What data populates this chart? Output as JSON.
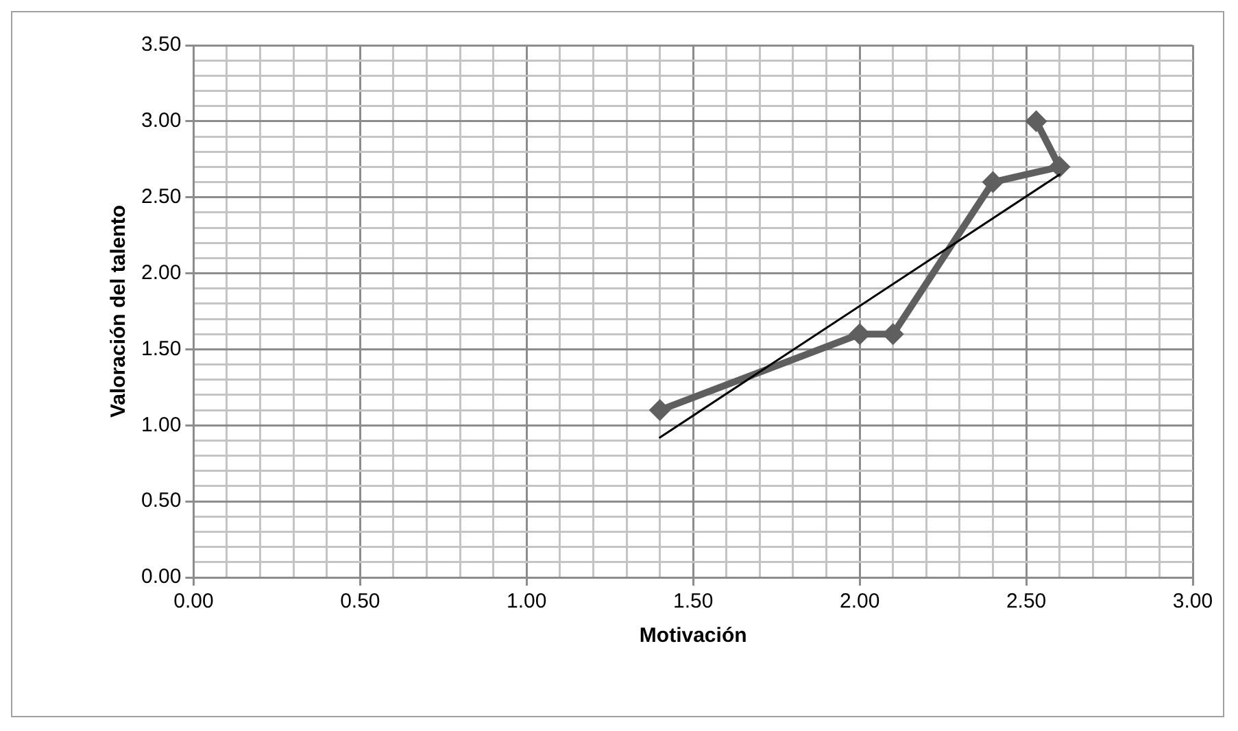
{
  "chart_data": {
    "type": "line",
    "xlabel": "Motivación",
    "ylabel": "Valoración del talento",
    "xlim": [
      0,
      3
    ],
    "ylim": [
      0,
      3.5
    ],
    "xticks": [
      {
        "value": 0,
        "label": "0.00"
      },
      {
        "value": 0.1,
        "label": null
      },
      {
        "value": 0.2,
        "label": null
      },
      {
        "value": 0.3,
        "label": null
      },
      {
        "value": 0.4,
        "label": null
      },
      {
        "value": 0.5,
        "label": "0.50"
      },
      {
        "value": 0.6,
        "label": null
      },
      {
        "value": 0.7,
        "label": null
      },
      {
        "value": 0.8,
        "label": null
      },
      {
        "value": 0.9,
        "label": null
      },
      {
        "value": 1,
        "label": "1.00"
      },
      {
        "value": 1.1,
        "label": null
      },
      {
        "value": 1.2,
        "label": null
      },
      {
        "value": 1.3,
        "label": null
      },
      {
        "value": 1.4,
        "label": null
      },
      {
        "value": 1.5,
        "label": "1.50"
      },
      {
        "value": 1.6,
        "label": null
      },
      {
        "value": 1.7,
        "label": null
      },
      {
        "value": 1.8,
        "label": null
      },
      {
        "value": 1.9,
        "label": null
      },
      {
        "value": 2,
        "label": "2.00"
      },
      {
        "value": 2.1,
        "label": null
      },
      {
        "value": 2.2,
        "label": null
      },
      {
        "value": 2.3,
        "label": null
      },
      {
        "value": 2.4,
        "label": null
      },
      {
        "value": 2.5,
        "label": "2.50"
      },
      {
        "value": 2.6,
        "label": null
      },
      {
        "value": 2.7,
        "label": null
      },
      {
        "value": 2.8,
        "label": null
      },
      {
        "value": 2.9,
        "label": null
      },
      {
        "value": 3,
        "label": "3.00"
      }
    ],
    "yticks": [
      {
        "value": 0,
        "label": "0.00"
      },
      {
        "value": 0.1,
        "label": null
      },
      {
        "value": 0.2,
        "label": null
      },
      {
        "value": 0.3,
        "label": null
      },
      {
        "value": 0.4,
        "label": null
      },
      {
        "value": 0.5,
        "label": "0.50"
      },
      {
        "value": 0.6,
        "label": null
      },
      {
        "value": 0.7,
        "label": null
      },
      {
        "value": 0.8,
        "label": null
      },
      {
        "value": 0.9,
        "label": null
      },
      {
        "value": 1,
        "label": "1.00"
      },
      {
        "value": 1.1,
        "label": null
      },
      {
        "value": 1.2,
        "label": null
      },
      {
        "value": 1.3,
        "label": null
      },
      {
        "value": 1.4,
        "label": null
      },
      {
        "value": 1.5,
        "label": "1.50"
      },
      {
        "value": 1.6,
        "label": null
      },
      {
        "value": 1.7,
        "label": null
      },
      {
        "value": 1.8,
        "label": null
      },
      {
        "value": 1.9,
        "label": null
      },
      {
        "value": 2,
        "label": "2.00"
      },
      {
        "value": 2.1,
        "label": null
      },
      {
        "value": 2.2,
        "label": null
      },
      {
        "value": 2.3,
        "label": null
      },
      {
        "value": 2.4,
        "label": null
      },
      {
        "value": 2.5,
        "label": "2.50"
      },
      {
        "value": 2.6,
        "label": null
      },
      {
        "value": 2.7,
        "label": null
      },
      {
        "value": 2.8,
        "label": null
      },
      {
        "value": 2.9,
        "label": null
      },
      {
        "value": 3,
        "label": "3.00"
      },
      {
        "value": 3.1,
        "label": null
      },
      {
        "value": 3.2,
        "label": null
      },
      {
        "value": 3.3,
        "label": null
      },
      {
        "value": 3.4,
        "label": null
      },
      {
        "value": 3.5,
        "label": "3.50"
      }
    ],
    "grid": true,
    "legend": false,
    "series": [
      {
        "x": [
          1.4,
          2.0,
          2.1,
          2.4,
          2.6,
          2.53
        ],
        "values": [
          1.1,
          1.6,
          1.6,
          2.6,
          2.7,
          3.0
        ],
        "color": "#5f5f5f",
        "marker": "diamond"
      },
      {
        "x": [
          1.4,
          2.6
        ],
        "values": [
          0.92,
          2.65
        ],
        "color": "#000000",
        "marker": "none"
      }
    ]
  }
}
